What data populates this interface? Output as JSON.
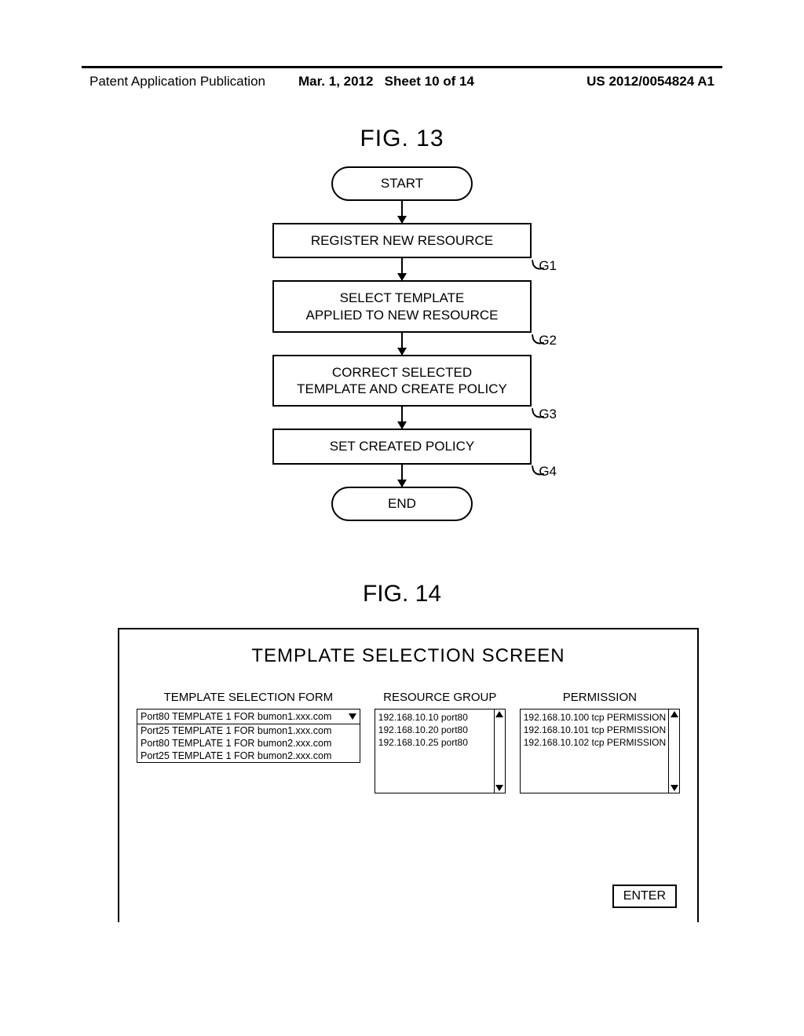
{
  "header": {
    "left": "Patent Application Publication",
    "date": "Mar. 1, 2012",
    "sheet": "Sheet 10 of 14",
    "pubno": "US 2012/0054824 A1"
  },
  "fig13": {
    "title": "FIG. 13",
    "start": "START",
    "end": "END",
    "steps": [
      {
        "text": "REGISTER NEW RESOURCE",
        "label": "G1"
      },
      {
        "text": "SELECT TEMPLATE\nAPPLIED TO NEW RESOURCE",
        "label": "G2"
      },
      {
        "text": "CORRECT SELECTED\nTEMPLATE AND CREATE POLICY",
        "label": "G3"
      },
      {
        "text": "SET CREATED POLICY",
        "label": "G4"
      }
    ]
  },
  "fig14": {
    "title": "FIG. 14",
    "screen_title": "TEMPLATE SELECTION SCREEN",
    "cols": {
      "template": {
        "label": "TEMPLATE SELECTION FORM",
        "selected": "Port80 TEMPLATE 1 FOR bumon1.xxx.com",
        "options": [
          "Port25 TEMPLATE 1 FOR bumon1.xxx.com",
          "Port80 TEMPLATE 1 FOR bumon2.xxx.com",
          "Port25 TEMPLATE 1 FOR bumon2.xxx.com"
        ]
      },
      "resource": {
        "label": "RESOURCE GROUP",
        "items": [
          "192.168.10.10  port80",
          "192.168.10.20  port80",
          "192.168.10.25  port80"
        ]
      },
      "permission": {
        "label": "PERMISSION",
        "items": [
          "192.168.10.100 tcp PERMISSION",
          "192.168.10.101 tcp PERMISSION",
          "192.168.10.102 tcp PERMISSION"
        ]
      }
    },
    "enter": "ENTER"
  },
  "style": {
    "border_color": "#000000",
    "bg_color": "#ffffff",
    "title_fontsize": 30,
    "body_fontsize": 17,
    "small_fontsize": 12
  }
}
